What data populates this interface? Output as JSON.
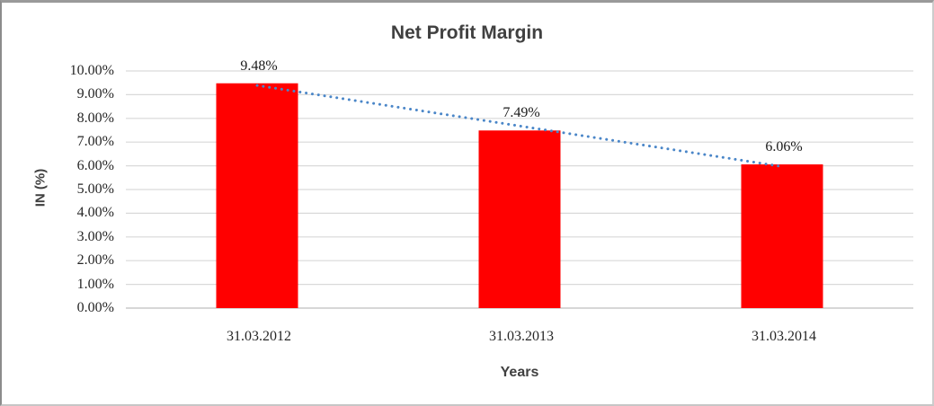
{
  "chart_data": {
    "type": "bar",
    "title": "Net Profit Margin",
    "xlabel": "Years",
    "ylabel": "IN (%)",
    "categories": [
      "31.03.2012",
      "31.03.2013",
      "31.03.2014"
    ],
    "values": [
      9.48,
      7.49,
      6.06
    ],
    "data_labels": [
      "9.48%",
      "7.49%",
      "6.06%"
    ],
    "ylim": [
      0,
      10
    ],
    "ytick_step": 1,
    "ytick_labels": [
      "0.00%",
      "1.00%",
      "2.00%",
      "3.00%",
      "4.00%",
      "5.00%",
      "6.00%",
      "7.00%",
      "8.00%",
      "9.00%",
      "10.00%"
    ],
    "grid": true,
    "legend": "none",
    "trendline": {
      "style": "dotted",
      "start_value": 9.39,
      "end_value": 5.97
    },
    "colors": {
      "bar": "#ff0000",
      "trendline": "#4a86c8",
      "gridline": "#d9d9d9",
      "axis_line": "#bfbfbf",
      "title_text": "#404040",
      "tick_text": "#262626"
    }
  }
}
